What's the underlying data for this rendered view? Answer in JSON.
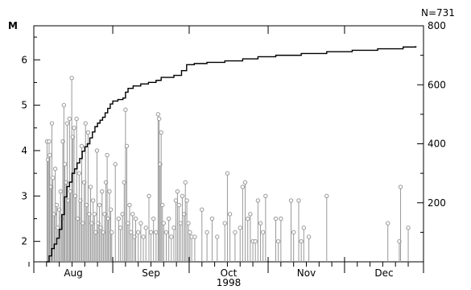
{
  "chart_data": {
    "type": "scatter",
    "count_label": "N=731",
    "left_axis": {
      "label": "M",
      "range": [
        1.55,
        6.75
      ],
      "ticks": [
        "2",
        "3",
        "4",
        "5",
        "6"
      ]
    },
    "right_axis": {
      "range": [
        0,
        800
      ],
      "ticks": [
        "200",
        "400",
        "600",
        "800"
      ]
    },
    "x_axis": {
      "range": [
        0,
        153
      ],
      "months": [
        "Aug",
        "Sep",
        "Oct",
        "Nov",
        "Dec"
      ],
      "month_boundaries": [
        0,
        31,
        61,
        92,
        122,
        153
      ],
      "year_label": "1998"
    },
    "series": [
      {
        "kind": "stem",
        "color": "#999999",
        "events": [
          {
            "day": 5.2,
            "mag": 4.2
          },
          {
            "day": 5.6,
            "mag": 3.8
          },
          {
            "day": 6.0,
            "mag": 4.2
          },
          {
            "day": 6.3,
            "mag": 3.9
          },
          {
            "day": 6.8,
            "mag": 3.2
          },
          {
            "day": 7.1,
            "mag": 4.6
          },
          {
            "day": 7.5,
            "mag": 3.4
          },
          {
            "day": 8.0,
            "mag": 2.6
          },
          {
            "day": 8.4,
            "mag": 3.6
          },
          {
            "day": 9.0,
            "mag": 2.8
          },
          {
            "day": 9.5,
            "mag": 2.3
          },
          {
            "day": 10.0,
            "mag": 2.7
          },
          {
            "day": 10.5,
            "mag": 3.1
          },
          {
            "day": 11.0,
            "mag": 2.5
          },
          {
            "day": 11.4,
            "mag": 4.2
          },
          {
            "day": 11.8,
            "mag": 5.0
          },
          {
            "day": 12.2,
            "mag": 3.7
          },
          {
            "day": 12.7,
            "mag": 3.3
          },
          {
            "day": 13.1,
            "mag": 4.6
          },
          {
            "day": 13.6,
            "mag": 2.9
          },
          {
            "day": 14.0,
            "mag": 4.7
          },
          {
            "day": 14.4,
            "mag": 3.1
          },
          {
            "day": 14.9,
            "mag": 5.6
          },
          {
            "day": 15.3,
            "mag": 4.3
          },
          {
            "day": 15.8,
            "mag": 4.5
          },
          {
            "day": 16.3,
            "mag": 3.0
          },
          {
            "day": 16.8,
            "mag": 4.7
          },
          {
            "day": 17.3,
            "mag": 2.5
          },
          {
            "day": 17.8,
            "mag": 3.5
          },
          {
            "day": 18.3,
            "mag": 2.9
          },
          {
            "day": 18.8,
            "mag": 4.1
          },
          {
            "day": 19.3,
            "mag": 2.4
          },
          {
            "day": 19.8,
            "mag": 3.3
          },
          {
            "day": 20.3,
            "mag": 4.6
          },
          {
            "day": 20.8,
            "mag": 2.8
          },
          {
            "day": 21.3,
            "mag": 4.4
          },
          {
            "day": 21.8,
            "mag": 2.6
          },
          {
            "day": 22.3,
            "mag": 3.2
          },
          {
            "day": 22.8,
            "mag": 2.4
          },
          {
            "day": 23.3,
            "mag": 2.9
          },
          {
            "day": 23.8,
            "mag": 2.6
          },
          {
            "day": 24.3,
            "mag": 2.2
          },
          {
            "day": 24.8,
            "mag": 4.0
          },
          {
            "day": 25.3,
            "mag": 2.4
          },
          {
            "day": 25.8,
            "mag": 2.8
          },
          {
            "day": 26.3,
            "mag": 2.3
          },
          {
            "day": 26.8,
            "mag": 3.1
          },
          {
            "day": 27.3,
            "mag": 2.2
          },
          {
            "day": 27.8,
            "mag": 2.6
          },
          {
            "day": 28.3,
            "mag": 3.3
          },
          {
            "day": 28.8,
            "mag": 3.9
          },
          {
            "day": 29.2,
            "mag": 2.5
          },
          {
            "day": 29.7,
            "mag": 3.1
          },
          {
            "day": 30.2,
            "mag": 2.7
          },
          {
            "day": 30.6,
            "mag": 2.2
          },
          {
            "day": 32.0,
            "mag": 3.7
          },
          {
            "day": 33.3,
            "mag": 2.5
          },
          {
            "day": 34.0,
            "mag": 2.3
          },
          {
            "day": 34.8,
            "mag": 2.6
          },
          {
            "day": 35.5,
            "mag": 3.3
          },
          {
            "day": 36.0,
            "mag": 4.9
          },
          {
            "day": 36.5,
            "mag": 4.1
          },
          {
            "day": 37.0,
            "mag": 2.4
          },
          {
            "day": 37.6,
            "mag": 2.8
          },
          {
            "day": 38.2,
            "mag": 2.2
          },
          {
            "day": 38.8,
            "mag": 2.6
          },
          {
            "day": 39.5,
            "mag": 2.1
          },
          {
            "day": 40.0,
            "mag": 2.5
          },
          {
            "day": 41.0,
            "mag": 2.2
          },
          {
            "day": 42.0,
            "mag": 2.4
          },
          {
            "day": 43.0,
            "mag": 2.1
          },
          {
            "day": 44.0,
            "mag": 2.3
          },
          {
            "day": 45.2,
            "mag": 3.0
          },
          {
            "day": 46.0,
            "mag": 2.2
          },
          {
            "day": 47.0,
            "mag": 2.5
          },
          {
            "day": 48.0,
            "mag": 2.2
          },
          {
            "day": 48.8,
            "mag": 4.8
          },
          {
            "day": 49.2,
            "mag": 4.7
          },
          {
            "day": 49.6,
            "mag": 3.7
          },
          {
            "day": 50.0,
            "mag": 4.4
          },
          {
            "day": 50.5,
            "mag": 2.8
          },
          {
            "day": 51.0,
            "mag": 2.4
          },
          {
            "day": 52.0,
            "mag": 2.2
          },
          {
            "day": 53.0,
            "mag": 2.5
          },
          {
            "day": 54.0,
            "mag": 2.1
          },
          {
            "day": 55.0,
            "mag": 2.3
          },
          {
            "day": 55.8,
            "mag": 2.9
          },
          {
            "day": 56.4,
            "mag": 3.1
          },
          {
            "day": 57.0,
            "mag": 2.8
          },
          {
            "day": 57.6,
            "mag": 2.4
          },
          {
            "day": 58.3,
            "mag": 3.0
          },
          {
            "day": 59.0,
            "mag": 2.6
          },
          {
            "day": 59.5,
            "mag": 3.3
          },
          {
            "day": 60.1,
            "mag": 2.9
          },
          {
            "day": 60.7,
            "mag": 2.4
          },
          {
            "day": 61.3,
            "mag": 2.2
          },
          {
            "day": 62.0,
            "mag": 2.1
          },
          {
            "day": 63.2,
            "mag": 2.1
          },
          {
            "day": 66.0,
            "mag": 2.7
          },
          {
            "day": 68.0,
            "mag": 2.2
          },
          {
            "day": 70.0,
            "mag": 2.5
          },
          {
            "day": 72.0,
            "mag": 2.1
          },
          {
            "day": 75.0,
            "mag": 2.4
          },
          {
            "day": 76.0,
            "mag": 3.5
          },
          {
            "day": 77.0,
            "mag": 2.6
          },
          {
            "day": 79.0,
            "mag": 2.2
          },
          {
            "day": 81.0,
            "mag": 2.3
          },
          {
            "day": 82.0,
            "mag": 3.2
          },
          {
            "day": 83.0,
            "mag": 3.3
          },
          {
            "day": 84.0,
            "mag": 2.5
          },
          {
            "day": 85.0,
            "mag": 2.6
          },
          {
            "day": 86.0,
            "mag": 2.0
          },
          {
            "day": 87.0,
            "mag": 2.0
          },
          {
            "day": 88.0,
            "mag": 2.9
          },
          {
            "day": 89.0,
            "mag": 2.4
          },
          {
            "day": 90.0,
            "mag": 2.2
          },
          {
            "day": 91.0,
            "mag": 3.0
          },
          {
            "day": 95.0,
            "mag": 2.5
          },
          {
            "day": 96.0,
            "mag": 2.0
          },
          {
            "day": 97.0,
            "mag": 2.5
          },
          {
            "day": 101.0,
            "mag": 2.9
          },
          {
            "day": 102.0,
            "mag": 2.2
          },
          {
            "day": 104.0,
            "mag": 2.9
          },
          {
            "day": 105.0,
            "mag": 2.0
          },
          {
            "day": 106.0,
            "mag": 2.3
          },
          {
            "day": 108.0,
            "mag": 2.1
          },
          {
            "day": 115.0,
            "mag": 3.0
          },
          {
            "day": 139.0,
            "mag": 2.4
          },
          {
            "day": 143.5,
            "mag": 2.0
          },
          {
            "day": 144.0,
            "mag": 3.2
          },
          {
            "day": 147.0,
            "mag": 2.3
          }
        ]
      },
      {
        "kind": "cumulative",
        "color": "#000000",
        "points": [
          {
            "day": 5,
            "count": 0
          },
          {
            "day": 6,
            "count": 20
          },
          {
            "day": 7,
            "count": 45
          },
          {
            "day": 8,
            "count": 60
          },
          {
            "day": 9,
            "count": 80
          },
          {
            "day": 10,
            "count": 110
          },
          {
            "day": 11,
            "count": 160
          },
          {
            "day": 12,
            "count": 220
          },
          {
            "day": 13,
            "count": 255
          },
          {
            "day": 14,
            "count": 270
          },
          {
            "day": 15,
            "count": 300
          },
          {
            "day": 16,
            "count": 315
          },
          {
            "day": 17,
            "count": 335
          },
          {
            "day": 18,
            "count": 350
          },
          {
            "day": 19,
            "count": 375
          },
          {
            "day": 20,
            "count": 390
          },
          {
            "day": 21,
            "count": 400
          },
          {
            "day": 22,
            "count": 420
          },
          {
            "day": 23,
            "count": 440
          },
          {
            "day": 24,
            "count": 458
          },
          {
            "day": 25,
            "count": 470
          },
          {
            "day": 26,
            "count": 480
          },
          {
            "day": 27,
            "count": 490
          },
          {
            "day": 28,
            "count": 505
          },
          {
            "day": 29,
            "count": 520
          },
          {
            "day": 30,
            "count": 535
          },
          {
            "day": 31,
            "count": 545
          },
          {
            "day": 33,
            "count": 550
          },
          {
            "day": 35,
            "count": 555
          },
          {
            "day": 36,
            "count": 575
          },
          {
            "day": 37,
            "count": 588
          },
          {
            "day": 39,
            "count": 596
          },
          {
            "day": 42,
            "count": 603
          },
          {
            "day": 45,
            "count": 608
          },
          {
            "day": 48,
            "count": 615
          },
          {
            "day": 50,
            "count": 625
          },
          {
            "day": 55,
            "count": 632
          },
          {
            "day": 58,
            "count": 648
          },
          {
            "day": 60,
            "count": 668
          },
          {
            "day": 63,
            "count": 672
          },
          {
            "day": 68,
            "count": 676
          },
          {
            "day": 75,
            "count": 681
          },
          {
            "day": 82,
            "count": 688
          },
          {
            "day": 88,
            "count": 695
          },
          {
            "day": 95,
            "count": 700
          },
          {
            "day": 105,
            "count": 706
          },
          {
            "day": 115,
            "count": 712
          },
          {
            "day": 125,
            "count": 717
          },
          {
            "day": 135,
            "count": 722
          },
          {
            "day": 145,
            "count": 728
          },
          {
            "day": 150,
            "count": 731
          }
        ]
      }
    ]
  }
}
